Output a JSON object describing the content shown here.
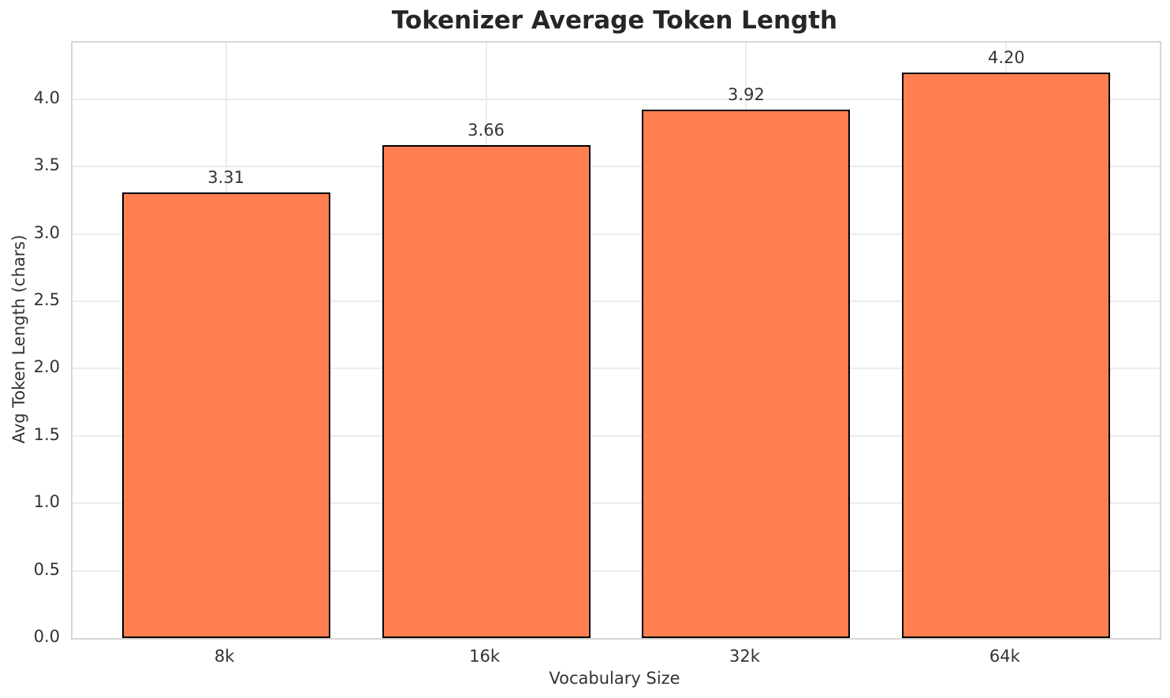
{
  "chart_data": {
    "type": "bar",
    "title": "Tokenizer Average Token Length",
    "xlabel": "Vocabulary Size",
    "ylabel": "Avg Token Length (chars)",
    "categories": [
      "8k",
      "16k",
      "32k",
      "64k"
    ],
    "values": [
      3.31,
      3.66,
      3.92,
      4.2
    ],
    "value_labels": [
      "3.31",
      "3.66",
      "3.92",
      "4.20"
    ],
    "yticks": [
      0.0,
      0.5,
      1.0,
      1.5,
      2.0,
      2.5,
      3.0,
      3.5,
      4.0
    ],
    "ytick_labels": [
      "0.0",
      "0.5",
      "1.0",
      "1.5",
      "2.0",
      "2.5",
      "3.0",
      "3.5",
      "4.0"
    ],
    "ylim": [
      0,
      4.42
    ],
    "grid": true,
    "legend": "none",
    "colors": {
      "bar_fill": "#FF7F50",
      "bar_edge": "#000000",
      "grid": "#ececec",
      "spine": "#d6d6d6",
      "text": "#333333",
      "title": "#262626",
      "background": "#ffffff"
    }
  }
}
